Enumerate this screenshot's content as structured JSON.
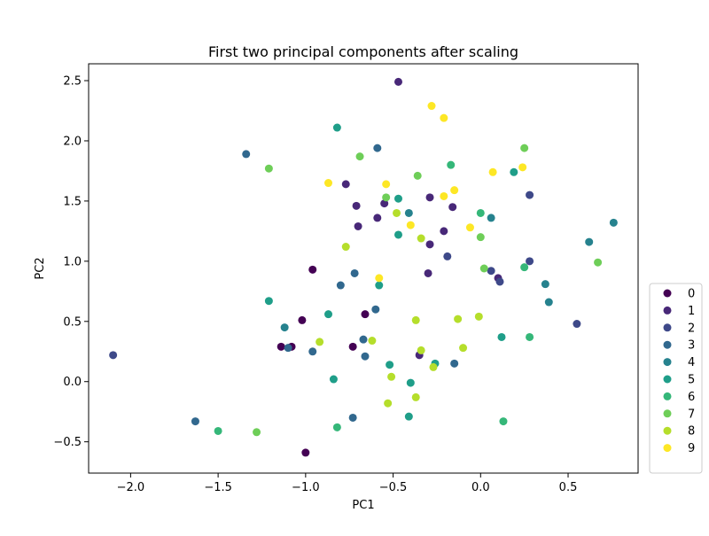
{
  "chart_data": {
    "type": "scatter",
    "title": "First two principal components after scaling",
    "xlabel": "PC1",
    "ylabel": "PC2",
    "xlim": [
      -2.24,
      0.9
    ],
    "ylim": [
      -0.76,
      2.64
    ],
    "xticks": [
      -2.0,
      -1.5,
      -1.0,
      -0.5,
      0.0,
      0.5
    ],
    "xtick_labels": [
      "−2.0",
      "−1.5",
      "−1.0",
      "−0.5",
      "0.0",
      "0.5"
    ],
    "yticks": [
      -0.5,
      0.0,
      0.5,
      1.0,
      1.5,
      2.0,
      2.5
    ],
    "ytick_labels": [
      "−0.5",
      "0.0",
      "0.5",
      "1.0",
      "1.5",
      "2.0",
      "2.5"
    ],
    "grid": false,
    "legend_position": "outside-right-bottom",
    "series": [
      {
        "name": "0",
        "color": "#440154",
        "points": [
          [
            -0.96,
            0.93
          ],
          [
            -1.02,
            0.51
          ],
          [
            -0.66,
            0.56
          ],
          [
            -1.14,
            0.29
          ],
          [
            -1.08,
            0.29
          ],
          [
            -0.73,
            0.29
          ],
          [
            -1.0,
            -0.59
          ]
        ]
      },
      {
        "name": "1",
        "color": "#482878",
        "points": [
          [
            -0.47,
            2.49
          ],
          [
            -0.77,
            1.64
          ],
          [
            -0.55,
            1.48
          ],
          [
            -0.71,
            1.46
          ],
          [
            -0.59,
            1.36
          ],
          [
            -0.29,
            1.53
          ],
          [
            -0.16,
            1.45
          ],
          [
            -0.7,
            1.29
          ],
          [
            -0.21,
            1.25
          ],
          [
            -0.29,
            1.14
          ],
          [
            -0.3,
            0.9
          ],
          [
            0.1,
            0.86
          ],
          [
            -0.35,
            0.22
          ]
        ]
      },
      {
        "name": "2",
        "color": "#3e4989",
        "points": [
          [
            0.28,
            1.55
          ],
          [
            -0.19,
            1.04
          ],
          [
            0.28,
            1.0
          ],
          [
            0.06,
            0.92
          ],
          [
            0.11,
            0.83
          ],
          [
            0.55,
            0.48
          ],
          [
            -2.1,
            0.22
          ]
        ]
      },
      {
        "name": "3",
        "color": "#31688e",
        "points": [
          [
            -1.34,
            1.89
          ],
          [
            -0.59,
            1.94
          ],
          [
            -0.72,
            0.9
          ],
          [
            -0.8,
            0.8
          ],
          [
            -0.6,
            0.6
          ],
          [
            -1.1,
            0.28
          ],
          [
            -0.96,
            0.25
          ],
          [
            -0.66,
            0.21
          ],
          [
            -0.67,
            0.35
          ],
          [
            -1.63,
            -0.33
          ],
          [
            -0.73,
            -0.3
          ],
          [
            -0.15,
            0.15
          ]
        ]
      },
      {
        "name": "4",
        "color": "#26828e",
        "points": [
          [
            -0.41,
            1.4
          ],
          [
            0.06,
            1.36
          ],
          [
            0.62,
            1.16
          ],
          [
            0.76,
            1.32
          ],
          [
            0.37,
            0.81
          ],
          [
            0.39,
            0.66
          ],
          [
            -1.12,
            0.45
          ]
        ]
      },
      {
        "name": "5",
        "color": "#1f9e89",
        "points": [
          [
            -0.82,
            2.11
          ],
          [
            0.19,
            1.74
          ],
          [
            -0.47,
            1.52
          ],
          [
            -0.47,
            1.22
          ],
          [
            -0.58,
            0.8
          ],
          [
            -1.21,
            0.67
          ],
          [
            -0.87,
            0.56
          ],
          [
            -0.52,
            0.14
          ],
          [
            -0.26,
            0.15
          ],
          [
            -0.84,
            0.02
          ],
          [
            -0.4,
            -0.01
          ],
          [
            -0.41,
            -0.29
          ],
          [
            0.12,
            0.37
          ]
        ]
      },
      {
        "name": "6",
        "color": "#35b779",
        "points": [
          [
            -0.17,
            1.8
          ],
          [
            0.0,
            1.4
          ],
          [
            0.25,
            0.95
          ],
          [
            0.28,
            0.37
          ],
          [
            -1.5,
            -0.41
          ],
          [
            -0.82,
            -0.38
          ],
          [
            0.13,
            -0.33
          ]
        ]
      },
      {
        "name": "7",
        "color": "#6ece58",
        "points": [
          [
            0.25,
            1.94
          ],
          [
            -0.69,
            1.87
          ],
          [
            -1.21,
            1.77
          ],
          [
            -0.36,
            1.71
          ],
          [
            -0.54,
            1.53
          ],
          [
            0.0,
            1.2
          ],
          [
            0.67,
            0.99
          ],
          [
            0.02,
            0.94
          ],
          [
            -1.28,
            -0.42
          ]
        ]
      },
      {
        "name": "8",
        "color": "#b5de2b",
        "points": [
          [
            -0.48,
            1.4
          ],
          [
            -0.34,
            1.19
          ],
          [
            -0.77,
            1.12
          ],
          [
            -0.37,
            0.51
          ],
          [
            -0.13,
            0.52
          ],
          [
            -0.01,
            0.54
          ],
          [
            -0.92,
            0.33
          ],
          [
            -0.62,
            0.34
          ],
          [
            -0.34,
            0.26
          ],
          [
            -0.1,
            0.28
          ],
          [
            -0.27,
            0.12
          ],
          [
            -0.51,
            0.04
          ],
          [
            -0.53,
            -0.18
          ],
          [
            -0.37,
            -0.13
          ]
        ]
      },
      {
        "name": "9",
        "color": "#fde725",
        "points": [
          [
            -0.28,
            2.29
          ],
          [
            -0.21,
            2.19
          ],
          [
            -0.87,
            1.65
          ],
          [
            -0.54,
            1.64
          ],
          [
            -0.15,
            1.59
          ],
          [
            -0.21,
            1.54
          ],
          [
            0.07,
            1.74
          ],
          [
            0.24,
            1.78
          ],
          [
            -0.4,
            1.3
          ],
          [
            -0.06,
            1.28
          ],
          [
            -0.58,
            0.86
          ]
        ]
      }
    ]
  }
}
